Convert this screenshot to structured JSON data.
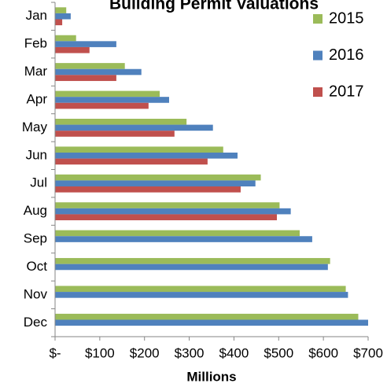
{
  "chart_data": {
    "type": "bar",
    "orientation": "horizontal",
    "title": "Building Permit Valuations",
    "x_label": "Millions",
    "categories": [
      "Jan",
      "Feb",
      "Mar",
      "Apr",
      "May",
      "Jun",
      "Jul",
      "Aug",
      "Sep",
      "Oct",
      "Nov",
      "Dec"
    ],
    "series": [
      {
        "name": "2015",
        "color": "#9BBB59",
        "values": [
          25,
          47,
          156,
          234,
          294,
          376,
          460,
          502,
          547,
          615,
          650,
          678
        ]
      },
      {
        "name": "2016",
        "color": "#4F81BD",
        "values": [
          35,
          137,
          193,
          255,
          353,
          408,
          448,
          527,
          575,
          610,
          655,
          700
        ]
      },
      {
        "name": "2017",
        "color": "#C0504D",
        "values": [
          16,
          77,
          137,
          209,
          267,
          341,
          415,
          496,
          null,
          null,
          null,
          null
        ]
      }
    ],
    "xlim": [
      0,
      700
    ],
    "xticks": [
      {
        "value": 0,
        "label": "$-"
      },
      {
        "value": 100,
        "label": "$100"
      },
      {
        "value": 200,
        "label": "$200"
      },
      {
        "value": 300,
        "label": "$300"
      },
      {
        "value": 400,
        "label": "$400"
      },
      {
        "value": 500,
        "label": "$500"
      },
      {
        "value": 600,
        "label": "$600"
      },
      {
        "value": 700,
        "label": "$700"
      }
    ],
    "legend": "top-right"
  }
}
